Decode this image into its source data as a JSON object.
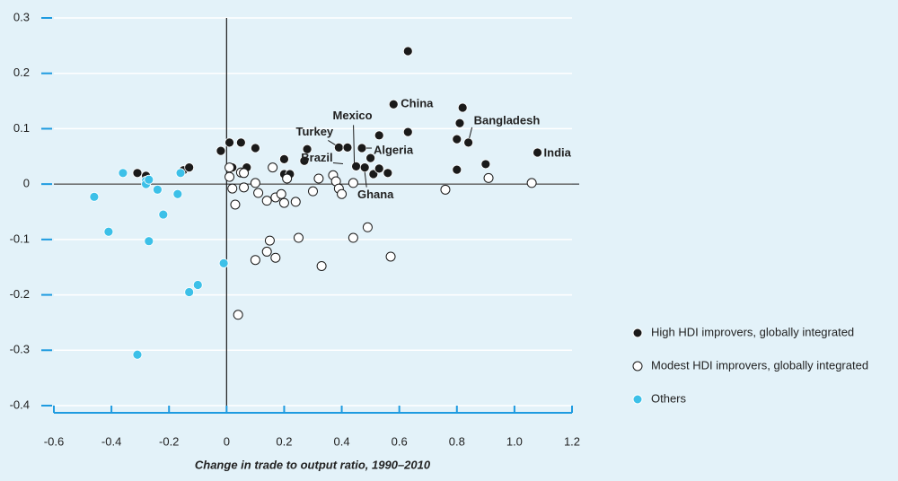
{
  "chart_data": {
    "type": "scatter",
    "x_label": "Change in trade to output ratio, 1990–2010",
    "xlim": [
      -0.6,
      1.2
    ],
    "ylim": [
      -0.4,
      0.3
    ],
    "xticks": [
      -0.6,
      -0.4,
      -0.2,
      0,
      0.2,
      0.4,
      0.6,
      0.8,
      {
        "value": 1,
        "label": "1.0"
      },
      1.2
    ],
    "yticks": [
      0.3,
      0.2,
      0.1,
      0,
      -0.1,
      -0.2,
      -0.3,
      -0.4
    ],
    "grid": true,
    "legend": "right",
    "series": [
      {
        "name": "High HDI improvers, globally integrated",
        "color": "#1a1a1a",
        "hollow": false,
        "x": [
          -0.31,
          -0.28,
          -0.15,
          -0.13,
          -0.02,
          0.01,
          0.05,
          0.02,
          0.07,
          0.1,
          0.2,
          0.2,
          0.22,
          0.28,
          0.27,
          0.39,
          0.42,
          0.45,
          0.47,
          0.48,
          0.5,
          0.51,
          0.53,
          0.53,
          0.56,
          0.58,
          0.63,
          0.63,
          0.82,
          0.81,
          0.84,
          0.8,
          0.8,
          0.9,
          1.08
        ],
        "values": [
          0.02,
          0.015,
          0.025,
          0.03,
          0.06,
          0.075,
          0.075,
          0.03,
          0.03,
          0.065,
          0.045,
          0.018,
          0.018,
          0.063,
          0.042,
          0.066,
          0.066,
          0.032,
          0.065,
          0.03,
          0.047,
          0.018,
          0.028,
          0.088,
          0.02,
          0.144,
          0.24,
          0.094,
          0.138,
          0.11,
          0.075,
          0.081,
          0.026,
          0.036,
          0.057
        ]
      },
      {
        "name": "Modest HDI improvers, globally integrated",
        "color": "#1a1a1a",
        "hollow": true,
        "x": [
          0.01,
          0.01,
          0.02,
          0.03,
          0.05,
          0.06,
          0.06,
          0.1,
          0.11,
          0.1,
          0.04,
          0.14,
          0.15,
          0.14,
          0.16,
          0.17,
          0.17,
          0.19,
          0.2,
          0.21,
          0.24,
          0.25,
          0.3,
          0.32,
          0.33,
          0.37,
          0.38,
          0.39,
          0.4,
          0.44,
          0.44,
          0.49,
          0.57,
          0.76,
          0.91,
          1.06
        ],
        "values": [
          0.03,
          0.013,
          -0.008,
          -0.037,
          0.021,
          0.02,
          -0.006,
          0.002,
          -0.016,
          -0.137,
          -0.236,
          -0.03,
          -0.102,
          -0.122,
          0.03,
          -0.024,
          -0.133,
          -0.018,
          -0.034,
          0.01,
          -0.032,
          -0.097,
          -0.013,
          0.01,
          -0.148,
          0.016,
          0.005,
          -0.008,
          -0.018,
          -0.097,
          0.002,
          -0.078,
          -0.131,
          -0.01,
          0.011,
          0.002
        ]
      },
      {
        "name": "Others",
        "color": "#3cc0e8",
        "hollow": false,
        "x": [
          -0.36,
          -0.46,
          -0.41,
          -0.31,
          -0.28,
          -0.28,
          -0.27,
          -0.24,
          -0.27,
          -0.22,
          -0.17,
          -0.16,
          -0.13,
          -0.1,
          -0.01
        ],
        "values": [
          0.02,
          -0.023,
          -0.086,
          -0.308,
          0.006,
          0,
          0.008,
          -0.01,
          -0.103,
          -0.055,
          -0.018,
          0.02,
          -0.195,
          -0.182,
          -0.143
        ]
      }
    ],
    "annotations": [
      {
        "text": "China",
        "x": 0.58,
        "y": 0.144
      },
      {
        "text": "Mexico",
        "x": 0.45,
        "y": 0.032
      },
      {
        "text": "Turkey",
        "x": 0.39,
        "y": 0.066
      },
      {
        "text": "Brazil",
        "x": 0.42,
        "y": 0.035
      },
      {
        "text": "Algeria",
        "x": 0.47,
        "y": 0.065
      },
      {
        "text": "Ghana",
        "x": 0.48,
        "y": 0.03
      },
      {
        "text": "Bangladesh",
        "x": 0.84,
        "y": 0.075
      },
      {
        "text": "India",
        "x": 1.08,
        "y": 0.057
      }
    ]
  }
}
